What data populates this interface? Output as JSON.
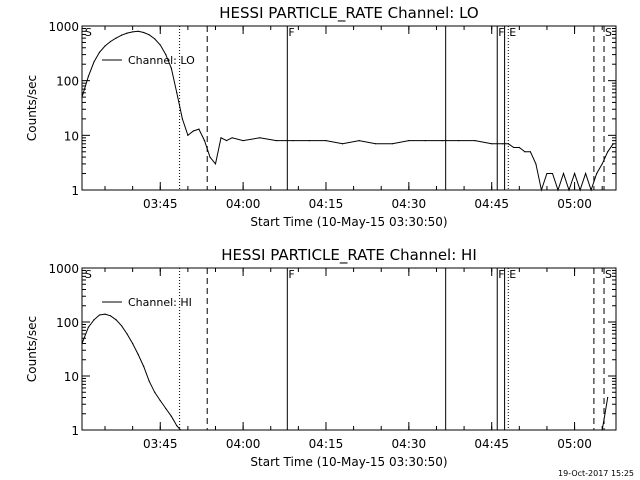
{
  "timestamp": "19-Oct-2017 15:25",
  "chart_data": [
    {
      "type": "line",
      "title": "HESSI PARTICLE_RATE Channel: LO",
      "xlabel": "Start Time (10-May-15 03:30:50)",
      "ylabel": "Counts/sec",
      "yscale": "log",
      "ylim": [
        1,
        1000
      ],
      "yticks": [
        1,
        10,
        100,
        1000
      ],
      "ytick_labels": [
        "1",
        "10",
        "100",
        "1000"
      ],
      "xlim": [
        "03:30:50",
        "05:07:30"
      ],
      "xticks": [
        "03:45",
        "04:00",
        "04:15",
        "04:30",
        "04:45",
        "05:00"
      ],
      "legend": "upper-left",
      "series": [
        {
          "name": "Channel: LO",
          "x": [
            "03:30:50",
            "03:32:00",
            "03:33:00",
            "03:34:00",
            "03:35:00",
            "03:36:00",
            "03:37:00",
            "03:38:00",
            "03:39:00",
            "03:40:00",
            "03:41:00",
            "03:42:00",
            "03:43:00",
            "03:44:00",
            "03:45:00",
            "03:46:00",
            "03:47:00",
            "03:48:00",
            "03:49:00",
            "03:50:00",
            "03:51:00",
            "03:52:00",
            "03:53:00",
            "03:54:00",
            "03:55:00",
            "03:56:00",
            "03:57:00",
            "03:58:00",
            "04:00:00",
            "04:03:00",
            "04:06:00",
            "04:09:00",
            "04:12:00",
            "04:15:00",
            "04:18:00",
            "04:21:00",
            "04:24:00",
            "04:27:00",
            "04:30:00",
            "04:33:00",
            "04:36:00",
            "04:39:00",
            "04:42:00",
            "04:45:00",
            "04:47:00",
            "04:48:00",
            "04:49:00",
            "04:50:00",
            "04:51:00",
            "04:52:00",
            "04:53:00",
            "04:54:00",
            "04:55:00",
            "04:56:00",
            "04:57:00",
            "04:58:00",
            "04:59:00",
            "05:00:00",
            "05:01:00",
            "05:02:00",
            "05:03:00",
            "05:04:00",
            "05:05:00",
            "05:06:00",
            "05:07:00"
          ],
          "values": [
            50,
            120,
            220,
            330,
            430,
            520,
            600,
            680,
            740,
            780,
            800,
            760,
            690,
            580,
            450,
            300,
            170,
            60,
            20,
            10,
            12,
            13,
            8,
            4,
            3,
            9,
            8,
            9,
            8,
            9,
            8,
            8,
            8,
            8,
            7,
            8,
            7,
            7,
            8,
            8,
            8,
            8,
            8,
            7,
            7,
            7,
            6,
            6,
            5,
            5,
            3,
            1,
            2,
            2,
            1,
            2,
            1,
            2,
            1,
            2,
            1,
            2,
            3,
            5,
            7
          ]
        }
      ],
      "annotations": [
        {
          "label": "S",
          "time": "03:31:10",
          "style": "text"
        },
        {
          "label": "",
          "time": "03:48:30",
          "style": "dotted"
        },
        {
          "label": "",
          "time": "03:53:30",
          "style": "dashed"
        },
        {
          "label": "F",
          "time": "04:08:00",
          "style": "solid"
        },
        {
          "label": "",
          "time": "04:36:40",
          "style": "solid"
        },
        {
          "label": "F",
          "time": "04:46:00",
          "style": "solid"
        },
        {
          "label": "",
          "time": "04:47:20",
          "style": "solid"
        },
        {
          "label": "E",
          "time": "04:48:00",
          "style": "dotted"
        },
        {
          "label": "",
          "time": "05:03:30",
          "style": "dashed"
        },
        {
          "label": "S",
          "time": "05:05:20",
          "style": "dashed"
        }
      ]
    },
    {
      "type": "line",
      "title": "HESSI PARTICLE_RATE Channel: HI",
      "xlabel": "Start Time (10-May-15 03:30:50)",
      "ylabel": "Counts/sec",
      "yscale": "log",
      "ylim": [
        1,
        1000
      ],
      "yticks": [
        1,
        10,
        100,
        1000
      ],
      "ytick_labels": [
        "1",
        "10",
        "100",
        "1000"
      ],
      "xlim": [
        "03:30:50",
        "05:07:30"
      ],
      "xticks": [
        "03:45",
        "04:00",
        "04:15",
        "04:30",
        "04:45",
        "05:00"
      ],
      "legend": "upper-left",
      "series": [
        {
          "name": "Channel: HI",
          "x": [
            "03:30:50",
            "03:32:00",
            "03:33:00",
            "03:34:00",
            "03:35:00",
            "03:36:00",
            "03:37:00",
            "03:38:00",
            "03:39:00",
            "03:40:00",
            "03:41:00",
            "03:42:00",
            "03:43:00",
            "03:44:00",
            "03:45:00",
            "03:46:00",
            "03:47:00",
            "03:48:00",
            "03:48:40"
          ],
          "values": [
            40,
            80,
            110,
            135,
            140,
            130,
            110,
            85,
            60,
            40,
            25,
            15,
            8,
            5,
            3.5,
            2.5,
            1.8,
            1.2,
            1
          ]
        },
        {
          "name": "",
          "x": [
            "05:05:00",
            "05:05:30",
            "05:06:00"
          ],
          "values": [
            1,
            2,
            4
          ]
        }
      ],
      "annotations": [
        {
          "label": "S",
          "time": "03:31:10",
          "style": "text"
        },
        {
          "label": "",
          "time": "03:48:30",
          "style": "dotted"
        },
        {
          "label": "",
          "time": "03:53:30",
          "style": "dashed"
        },
        {
          "label": "F",
          "time": "04:08:00",
          "style": "solid"
        },
        {
          "label": "",
          "time": "04:36:40",
          "style": "solid"
        },
        {
          "label": "F",
          "time": "04:46:00",
          "style": "solid"
        },
        {
          "label": "",
          "time": "04:47:20",
          "style": "solid"
        },
        {
          "label": "E",
          "time": "04:48:00",
          "style": "dotted"
        },
        {
          "label": "",
          "time": "05:03:30",
          "style": "dashed"
        },
        {
          "label": "S",
          "time": "05:05:20",
          "style": "dashed"
        }
      ]
    }
  ]
}
